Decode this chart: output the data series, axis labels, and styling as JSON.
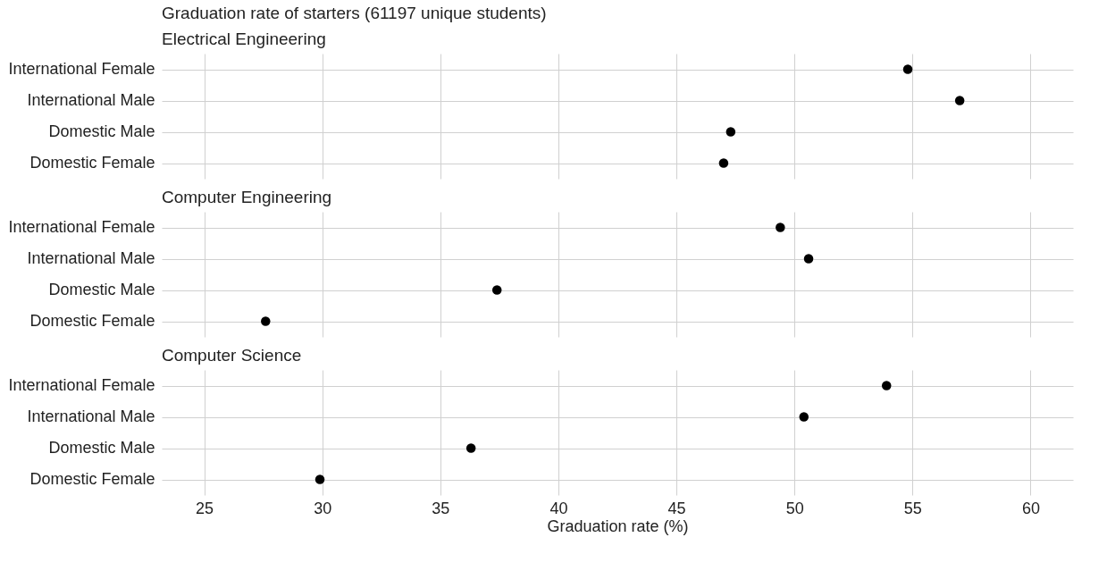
{
  "chart_data": [
    {
      "type": "scatter",
      "title": "Graduation rate of starters (61197 unique students)",
      "subtitle": "Electrical Engineering",
      "categories": [
        "International Female",
        "International Male",
        "Domestic Male",
        "Domestic Female"
      ],
      "series": [
        {
          "color": "#000000",
          "values": [
            54.8,
            57.0,
            47.3,
            47.0
          ]
        }
      ],
      "xlim": [
        23.2,
        61.8
      ],
      "xticks": [
        25,
        30,
        35,
        40,
        45,
        50,
        55,
        60
      ],
      "grid": true,
      "marker": "circle",
      "tick_labels": "y",
      "orientation": "horizontal"
    },
    {
      "type": "scatter",
      "title": "Computer Engineering",
      "categories": [
        "International Female",
        "International Male",
        "Domestic Male",
        "Domestic Female"
      ],
      "series": [
        {
          "color": "#000000",
          "values": [
            49.4,
            50.6,
            37.4,
            27.6
          ]
        }
      ],
      "xlim": [
        23.2,
        61.8
      ],
      "xticks": [
        25,
        30,
        35,
        40,
        45,
        50,
        55,
        60
      ],
      "grid": true,
      "marker": "circle",
      "tick_labels": "y",
      "orientation": "horizontal"
    },
    {
      "type": "scatter",
      "title": "Computer Science",
      "xlabel": "Graduation rate (%)",
      "categories": [
        "International Female",
        "International Male",
        "Domestic Male",
        "Domestic Female"
      ],
      "series": [
        {
          "color": "#000000",
          "values": [
            53.9,
            50.4,
            36.3,
            29.9
          ]
        }
      ],
      "xlim": [
        23.2,
        61.8
      ],
      "xticks": [
        25,
        30,
        35,
        40,
        45,
        50,
        55,
        60
      ],
      "grid": true,
      "marker": "circle",
      "orientation": "horizontal"
    }
  ]
}
